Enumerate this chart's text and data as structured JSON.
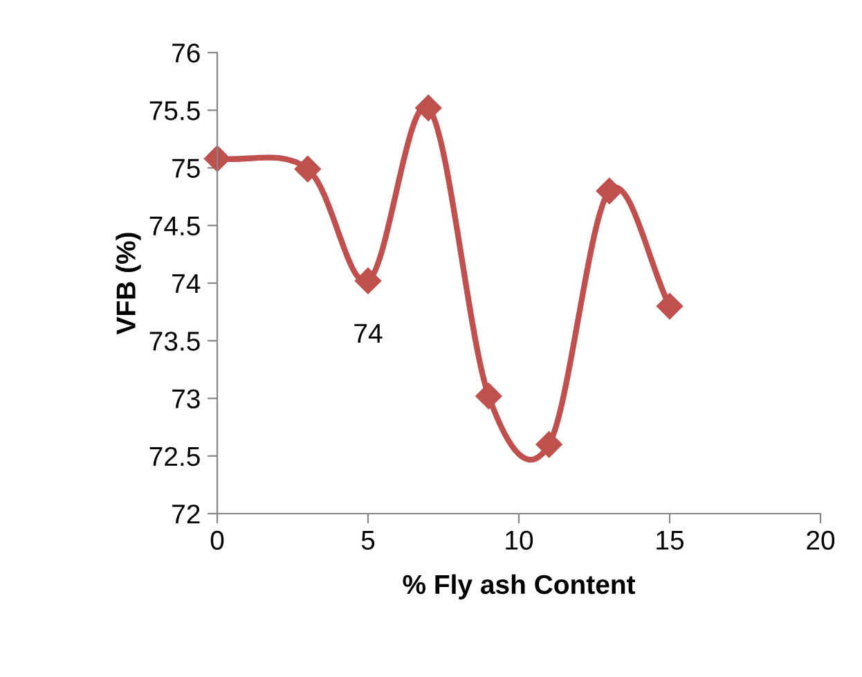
{
  "chart_data": {
    "type": "line",
    "xlabel": "% Fly ash Content",
    "ylabel": "VFB (%)",
    "x": [
      0,
      3,
      5,
      7,
      9,
      11,
      13,
      15
    ],
    "series": [
      {
        "color": "#c0504d",
        "values": [
          75.08,
          74.99,
          74.02,
          75.52,
          73.02,
          72.6,
          74.8,
          73.8
        ]
      }
    ],
    "xlim": [
      0,
      20
    ],
    "xticks": [
      0,
      5,
      10,
      15,
      20
    ],
    "ylim": [
      72,
      76
    ],
    "yticks": [
      72,
      72.5,
      73,
      73.5,
      74,
      74.5,
      75,
      75.5,
      76
    ],
    "marker": "diamond",
    "line_style": "solid",
    "grid": false,
    "annotations": [
      {
        "text": "74",
        "x": 5,
        "y": 74.02
      }
    ]
  }
}
